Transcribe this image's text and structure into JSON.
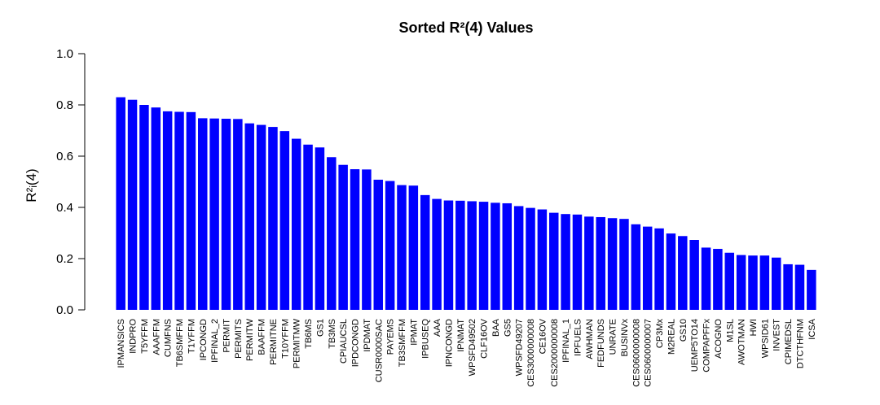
{
  "chart_data": {
    "type": "bar",
    "title": "Sorted R²(4) Values",
    "ylabel": "R²ᵢ(4)",
    "xlabel": "",
    "ylim": [
      0,
      1
    ],
    "yticks": [
      "0.0",
      "0.2",
      "0.4",
      "0.6",
      "0.8",
      "1.0"
    ],
    "bar_color": "#0000ff",
    "categories": [
      "IPMANSICS",
      "INDPRO",
      "T5YFFM",
      "AAAFFM",
      "CUMFNS",
      "TB6SMFFM",
      "T1YFFM",
      "IPCONGD",
      "IPFINAL_2",
      "PERMIT",
      "PERMITS",
      "PERMITW",
      "BAAFFM",
      "PERMITNE",
      "T10YFFM",
      "PERMITMW",
      "TB6MS",
      "GS1",
      "TB3MS",
      "CPIAUCSL",
      "IPDCONGD",
      "IPDMAT",
      "CUSR0000SAC",
      "PAYEMS",
      "TB3SMFFM",
      "IPMAT",
      "IPBUSEQ",
      "AAA",
      "IPNCONGD",
      "IPNMAT",
      "WPSFD49502",
      "CLF16OV",
      "BAA",
      "GS5",
      "WPSFD49207",
      "CES3000000008",
      "CE16OV",
      "CES2000000008",
      "IPFINAL_1",
      "IPFUELS",
      "AWHMAN",
      "FEDFUNDS",
      "UNRATE",
      "BUSINVx",
      "CES0600000008",
      "CES0600000007",
      "CP3Mx",
      "M2REAL",
      "GS10",
      "UEMP5TO14",
      "COMPAPFFx",
      "ACOGNO",
      "M1SL",
      "AWOTMAN",
      "HWI",
      "WPSID61",
      "INVEST",
      "CPIMEDSL",
      "DTCTHFNM",
      "ICSA"
    ],
    "values": [
      0.83,
      0.82,
      0.8,
      0.79,
      0.775,
      0.773,
      0.772,
      0.748,
      0.747,
      0.746,
      0.745,
      0.728,
      0.722,
      0.714,
      0.698,
      0.668,
      0.645,
      0.634,
      0.596,
      0.566,
      0.549,
      0.548,
      0.508,
      0.503,
      0.487,
      0.485,
      0.448,
      0.433,
      0.427,
      0.426,
      0.424,
      0.422,
      0.418,
      0.416,
      0.405,
      0.398,
      0.392,
      0.379,
      0.374,
      0.372,
      0.364,
      0.362,
      0.358,
      0.355,
      0.334,
      0.325,
      0.318,
      0.298,
      0.288,
      0.273,
      0.243,
      0.238,
      0.223,
      0.214,
      0.212,
      0.212,
      0.204,
      0.178,
      0.176,
      0.156
    ]
  }
}
